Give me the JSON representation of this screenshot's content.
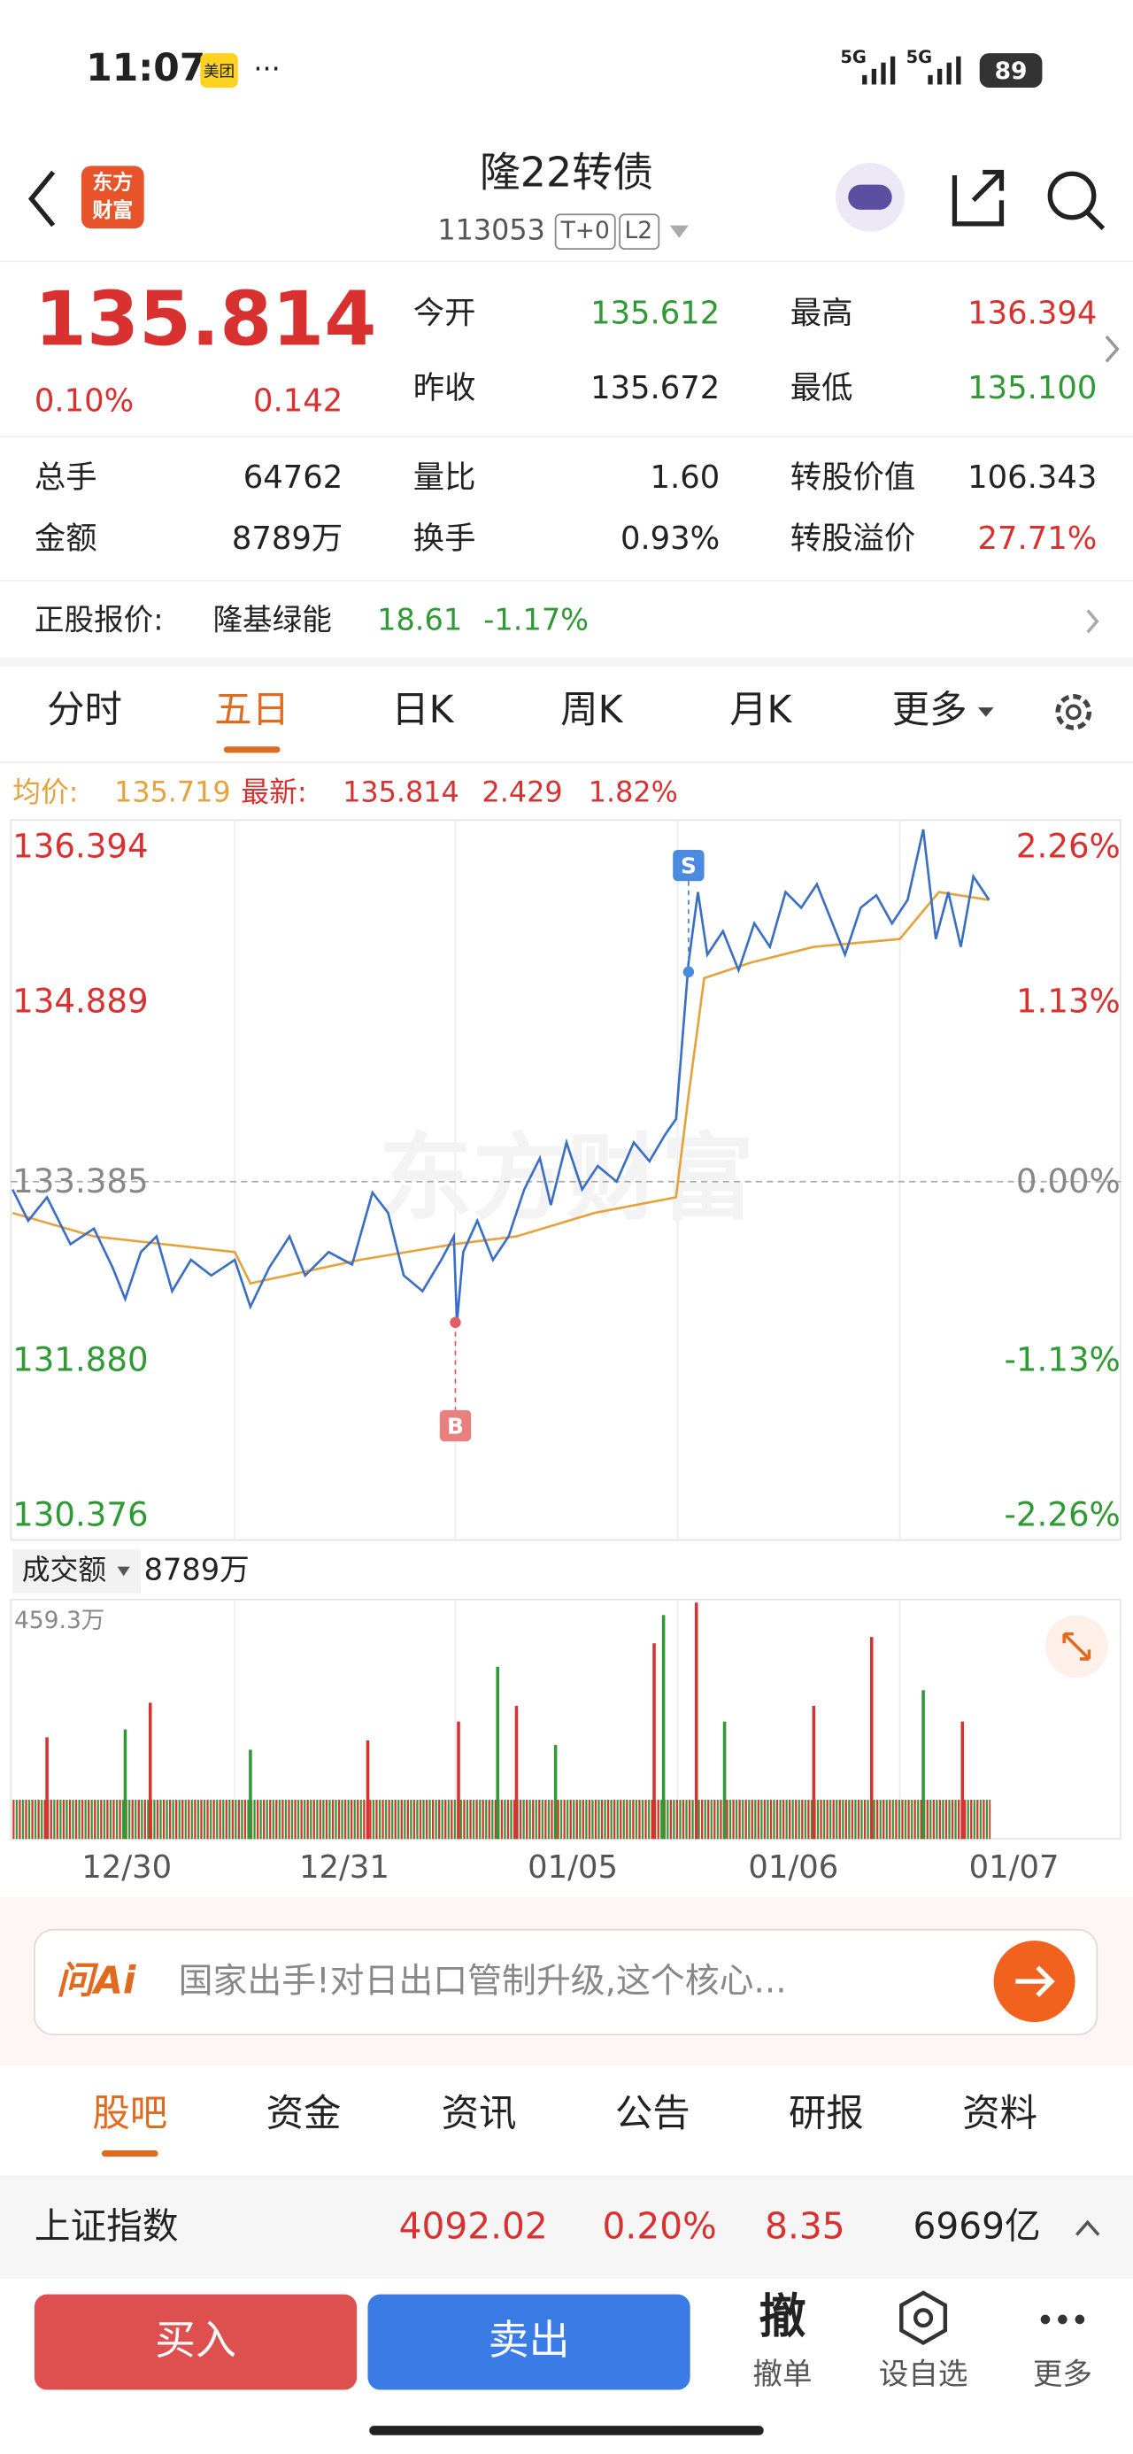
{
  "status": {
    "time": "11:07",
    "badge": "美团",
    "net1": "5G",
    "net2": "5G",
    "battery": "89"
  },
  "header": {
    "logo1": "东方",
    "logo2": "财富",
    "title": "隆22转债",
    "code": "113053",
    "tag1": "T+0",
    "tag2": "L2"
  },
  "quote": {
    "price": "135.814",
    "change_pct": "0.10%",
    "change": "0.142",
    "grid1": [
      {
        "label": "今开",
        "value": "135.612"
      },
      {
        "label": "最高",
        "value": "136.394"
      },
      {
        "label": "昨收",
        "value": "135.672"
      },
      {
        "label": "最低",
        "value": "135.100"
      }
    ],
    "grid2": [
      {
        "label": "总手",
        "value": "64762"
      },
      {
        "label": "量比",
        "value": "1.60"
      },
      {
        "label": "转股价值",
        "value": "106.343"
      },
      {
        "label": "金额",
        "value": "8789万"
      },
      {
        "label": "换手",
        "value": "0.93%"
      },
      {
        "label": "转股溢价",
        "value": "27.71%"
      }
    ]
  },
  "stock": {
    "label": "正股报价:",
    "name": "隆基绿能",
    "price": "18.61",
    "change": "-1.17%"
  },
  "tabs": [
    "分时",
    "五日",
    "日K",
    "周K",
    "月K",
    "更多"
  ],
  "chart": {
    "avg_label": "均价:",
    "avg": "135.719",
    "latest_label": "最新:",
    "latest": "135.814",
    "change": "2.429",
    "pct": "1.82%",
    "y_left": [
      "136.394",
      "134.889",
      "133.385",
      "131.880",
      "130.376"
    ],
    "y_right": [
      "2.26%",
      "1.13%",
      "0.00%",
      "-1.13%",
      "-2.26%"
    ],
    "sell_mark": "S",
    "buy_mark": "B",
    "watermark": "东方财富",
    "volume_label": "成交额",
    "volume_total": "8789万",
    "volume_max": "459.3万",
    "x_labels": [
      "12/30",
      "12/31",
      "01/05",
      "01/06",
      "01/07"
    ]
  },
  "ai": {
    "brand": "问Ai",
    "text": "国家出手!对日出口管制升级,这个核心..."
  },
  "bottom_tabs": [
    "股吧",
    "资金",
    "资讯",
    "公告",
    "研报",
    "资料"
  ],
  "index": {
    "name": "上证指数",
    "value": "4092.02",
    "pct": "0.20%",
    "change": "8.35",
    "amount": "6969亿"
  },
  "actions": {
    "buy": "买入",
    "sell": "卖出",
    "cancel_icon": "撤",
    "cancel": "撤单",
    "watch": "设自选",
    "more": "更多"
  }
}
